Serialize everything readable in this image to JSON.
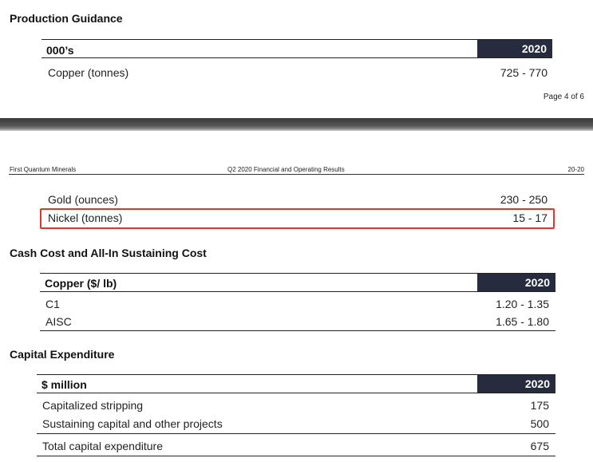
{
  "page1": {
    "title": "Production Guidance",
    "table": {
      "unit_header": "000’s",
      "year_header": "2020",
      "rows": [
        {
          "label": "Copper (tonnes)",
          "value": "725 - 770"
        }
      ]
    },
    "page_number": "Page 4 of 6"
  },
  "page2": {
    "header": {
      "company": "First Quantum Minerals",
      "report": "Q2 2020 Financial and Operating Results",
      "page_ref": "20-20"
    },
    "production_rows": [
      {
        "label": "Gold (ounces)",
        "value": "230 - 250"
      },
      {
        "label": "Nickel (tonnes)",
        "value": "15 - 17"
      }
    ],
    "cash_cost": {
      "title": "Cash Cost and All-In Sustaining Cost",
      "unit_header": "Copper ($/ lb)",
      "year_header": "2020",
      "rows": [
        {
          "label": "C1",
          "value": "1.20 - 1.35"
        },
        {
          "label": "AISC",
          "value": "1.65 - 1.80"
        }
      ]
    },
    "capex": {
      "title": "Capital Expenditure",
      "unit_header": "$ million",
      "year_header": "2020",
      "rows": [
        {
          "label": "Capitalized stripping",
          "value": "175"
        },
        {
          "label": "Sustaining capital and other projects",
          "value": "500"
        }
      ],
      "total": {
        "label": "Total capital expenditure",
        "value": "675"
      }
    }
  },
  "colors": {
    "header_fill": "#262b3d",
    "highlight_border": "#e5332a"
  }
}
